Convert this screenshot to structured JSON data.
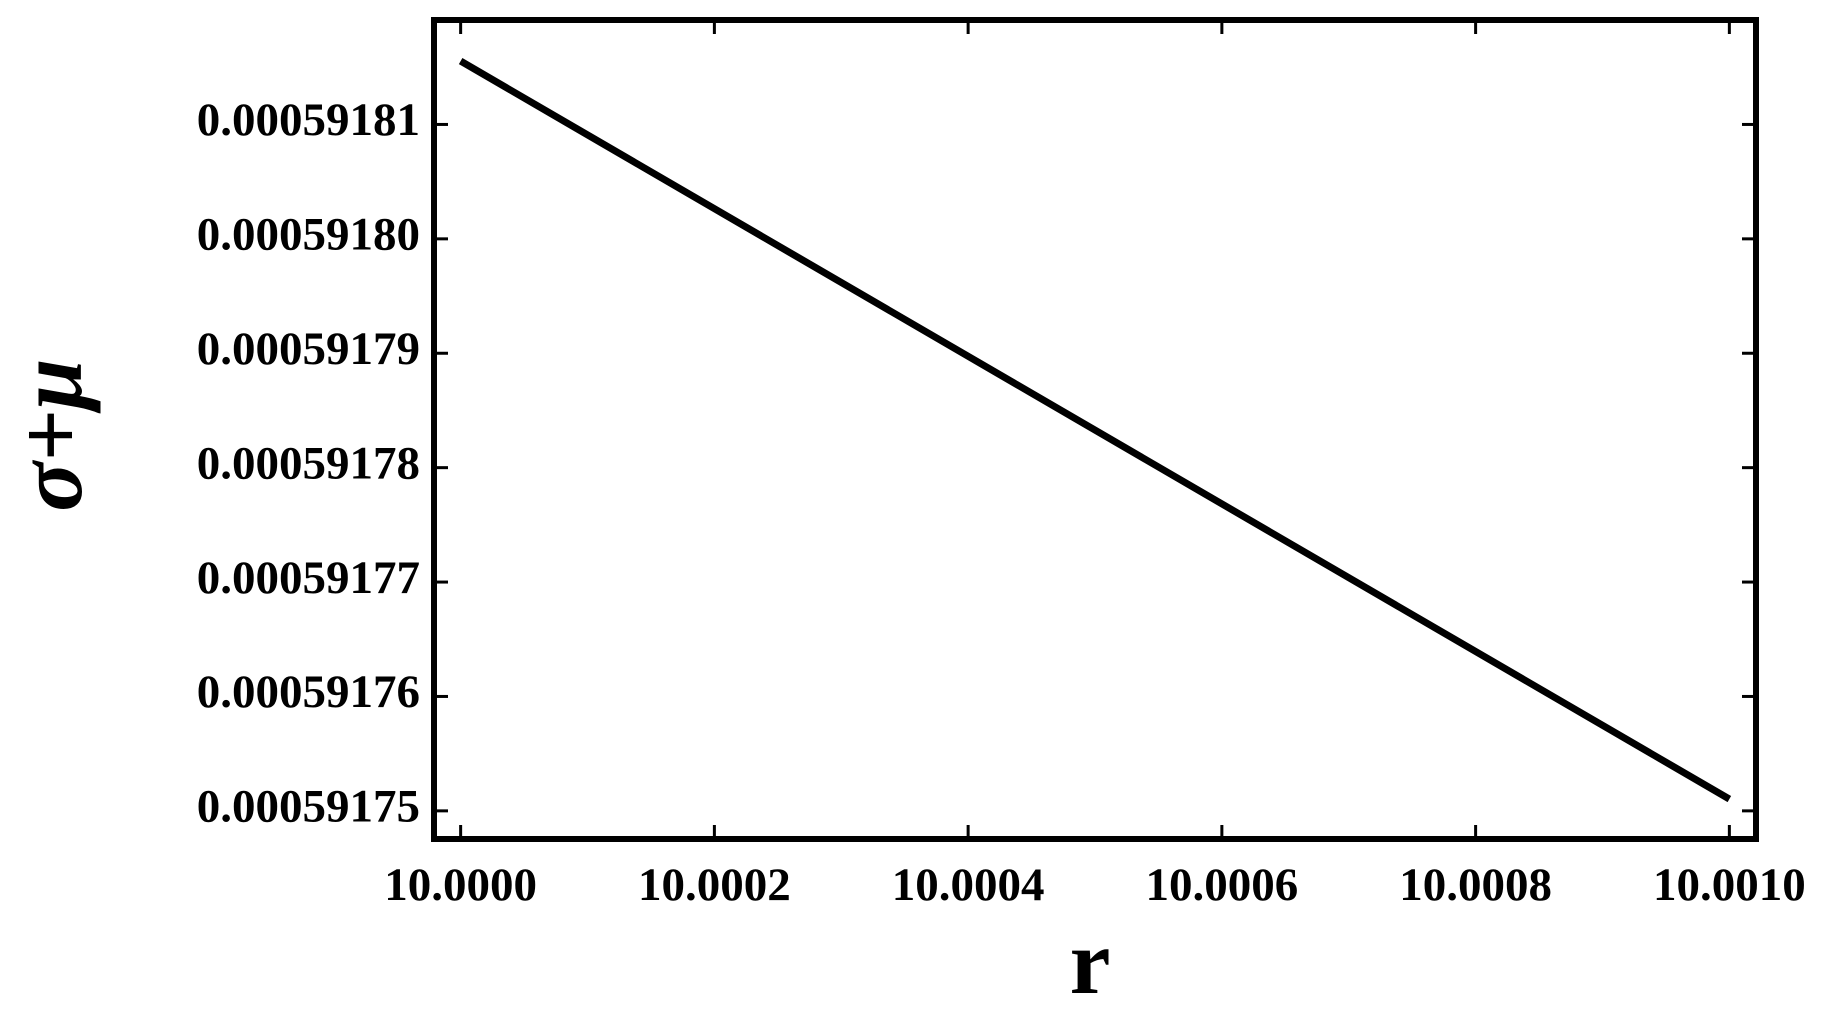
{
  "chart_data": {
    "type": "line",
    "x_label": "r",
    "y_label": "σ+μ",
    "x": [
      10,
      10.001
    ],
    "values": [
      0.00059181554,
      0.00059175103
    ],
    "color": "#000000",
    "xlim": [
      9.999979,
      10.001021
    ],
    "ylim": [
      0.00059174754,
      0.00059181913
    ],
    "xticks": [
      {
        "value": 10,
        "label": "10.0000"
      },
      {
        "value": 10.0002,
        "label": "10.0002"
      },
      {
        "value": 10.0004,
        "label": "10.0004"
      },
      {
        "value": 10.0006,
        "label": "10.0006"
      },
      {
        "value": 10.0008,
        "label": "10.0008"
      },
      {
        "value": 10.001,
        "label": "10.0010"
      }
    ],
    "yticks": [
      0.00059175,
      0.00059176,
      0.00059177,
      0.00059178,
      0.00059179,
      {
        "value": 0.0005918,
        "label": "0.00059180"
      },
      0.00059181
    ]
  }
}
